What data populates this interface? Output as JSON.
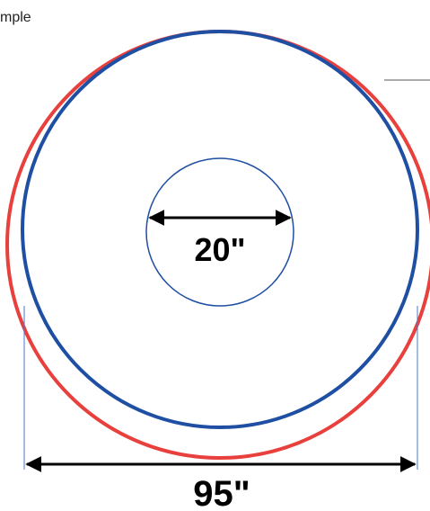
{
  "caption": "mple",
  "inner_label": "20\"",
  "outer_label": "95\""
}
